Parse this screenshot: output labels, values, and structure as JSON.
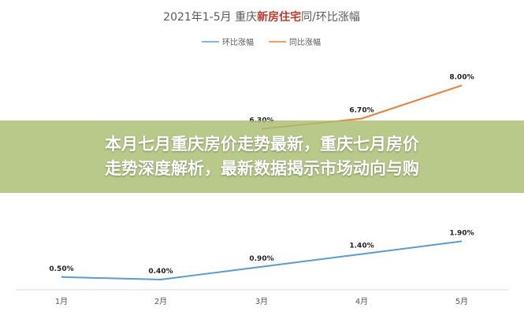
{
  "chart_data": {
    "type": "line",
    "title": {
      "prefix": "2021年1-5月 重庆",
      "highlight": "新房住宅",
      "suffix": "同/环比涨幅"
    },
    "categories": [
      "1月",
      "2月",
      "3月",
      "4月",
      "5月"
    ],
    "series": [
      {
        "name": "环比涨幅",
        "color": "#5b9bd5",
        "values": [
          0.5,
          0.4,
          0.9,
          1.4,
          1.9
        ],
        "labels": [
          "0.50%",
          "0.40%",
          "0.90%",
          "1.40%",
          "1.90%"
        ]
      },
      {
        "name": "同比涨幅",
        "color": "#ed7d31",
        "values": [
          null,
          null,
          6.3,
          6.7,
          8.0
        ],
        "labels": [
          "",
          "",
          "6.30%",
          "6.70%",
          "8.00%"
        ]
      }
    ],
    "ylim": [
      0,
      9
    ],
    "grid": false,
    "legend_position": "top-center"
  },
  "overlay": {
    "line1": "本月七月重庆房价走势最新，重庆七月房价",
    "line2": "走势深度解析，最新数据揭示市场动向与购"
  },
  "colors": {
    "title_highlight": "#c0392b",
    "overlay_bg": "#a9bd70"
  }
}
